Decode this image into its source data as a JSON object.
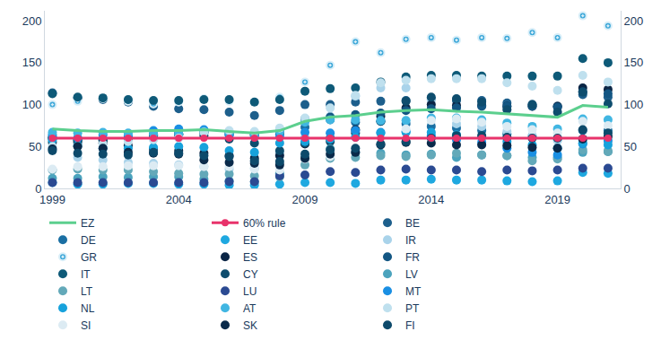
{
  "chart_data": {
    "type": "scatter",
    "x": [
      1999,
      2000,
      2001,
      2002,
      2003,
      2004,
      2005,
      2006,
      2007,
      2008,
      2009,
      2010,
      2011,
      2012,
      2013,
      2014,
      2015,
      2016,
      2017,
      2018,
      2019,
      2020,
      2021
    ],
    "xlim": [
      1998.7,
      2021.5
    ],
    "xticks": [
      1999,
      2004,
      2009,
      2014,
      2019
    ],
    "ylim": [
      0,
      212
    ],
    "yticks": [
      0,
      50,
      100,
      150,
      200
    ],
    "grid": false,
    "legend": "bottom",
    "series": [
      {
        "name": "EZ",
        "type": "line",
        "color": "#5ccf8e",
        "values": [
          71,
          69,
          68,
          68,
          69,
          69,
          70,
          68,
          66,
          69,
          80,
          85,
          87,
          91,
          93,
          94,
          92,
          91,
          89,
          87,
          85,
          99,
          97
        ]
      },
      {
        "name": "60% rule",
        "type": "line",
        "marker": "circle",
        "color": "#e8336b",
        "values": [
          60,
          60,
          60,
          60,
          60,
          60,
          60,
          60,
          60,
          60,
          60,
          60,
          60,
          60,
          60,
          60,
          60,
          60,
          60,
          60,
          60,
          60,
          60
        ]
      },
      {
        "name": "BE",
        "color": "#1d5f8c",
        "values": [
          114,
          108,
          106,
          103,
          98,
          95,
          94,
          91,
          87,
          93,
          100,
          100,
          103,
          104,
          105,
          107,
          105,
          105,
          102,
          100,
          98,
          112,
          109
        ]
      },
      {
        "name": "DE",
        "color": "#1a6fa3",
        "values": [
          61,
          59,
          58,
          60,
          63,
          65,
          67,
          66,
          64,
          65,
          73,
          82,
          79,
          80,
          77,
          74,
          72,
          69,
          65,
          62,
          59,
          69,
          69
        ]
      },
      {
        "name": "EE",
        "color": "#1ea8e0",
        "values": [
          7,
          5,
          5,
          6,
          6,
          5,
          5,
          4,
          4,
          5,
          7,
          7,
          6,
          10,
          10,
          11,
          10,
          10,
          9,
          8,
          9,
          19,
          18
        ]
      },
      {
        "name": "IR",
        "color": "#a9d3ea",
        "values": [
          47,
          37,
          34,
          31,
          30,
          28,
          26,
          23,
          24,
          42,
          61,
          86,
          110,
          120,
          120,
          105,
          77,
          74,
          68,
          63,
          57,
          58,
          56
        ]
      },
      {
        "name": "GR",
        "marker": "circle-dot",
        "color": "#3aa6d8",
        "values": [
          100,
          104,
          107,
          104,
          101,
          103,
          107,
          104,
          103,
          109,
          127,
          147,
          175,
          162,
          178,
          180,
          177,
          180,
          179,
          186,
          180,
          206,
          194
        ]
      },
      {
        "name": "ES",
        "color": "#0b2545",
        "values": [
          60,
          57,
          54,
          51,
          47,
          45,
          42,
          39,
          36,
          39,
          53,
          60,
          70,
          86,
          96,
          100,
          99,
          99,
          98,
          98,
          98,
          120,
          118
        ]
      },
      {
        "name": "FR",
        "color": "#135683",
        "values": [
          60,
          58,
          58,
          60,
          64,
          65,
          67,
          64,
          64,
          68,
          83,
          85,
          88,
          90,
          93,
          95,
          96,
          98,
          98,
          98,
          97,
          115,
          113
        ]
      },
      {
        "name": "IT",
        "color": "#0e5a78",
        "values": [
          113,
          109,
          108,
          106,
          105,
          105,
          106,
          106,
          103,
          106,
          116,
          119,
          120,
          127,
          133,
          135,
          135,
          134,
          134,
          134,
          134,
          155,
          150
        ]
      },
      {
        "name": "CY",
        "color": "#0e4d6e",
        "values": [
          55,
          55,
          57,
          60,
          64,
          64,
          63,
          59,
          54,
          45,
          54,
          56,
          66,
          80,
          104,
          109,
          107,
          103,
          94,
          100,
          91,
          115,
          101
        ]
      },
      {
        "name": "LV",
        "color": "#4ba3bd",
        "values": [
          12,
          12,
          14,
          13,
          14,
          14,
          11,
          9,
          8,
          18,
          36,
          47,
          43,
          42,
          40,
          41,
          37,
          40,
          39,
          37,
          37,
          43,
          44
        ]
      },
      {
        "name": "LT",
        "color": "#63a9b9",
        "values": [
          22,
          23,
          22,
          22,
          20,
          18,
          17,
          17,
          15,
          14,
          28,
          36,
          37,
          39,
          38,
          40,
          42,
          40,
          39,
          33,
          35,
          46,
          44
        ]
      },
      {
        "name": "LU",
        "color": "#2b4a92",
        "values": [
          7,
          7,
          7,
          7,
          7,
          7,
          7,
          8,
          8,
          15,
          16,
          20,
          19,
          22,
          23,
          22,
          22,
          20,
          22,
          21,
          22,
          24,
          24
        ]
      },
      {
        "name": "MT",
        "color": "#1a8fe3",
        "values": [
          64,
          60,
          64,
          63,
          69,
          71,
          70,
          64,
          62,
          62,
          67,
          66,
          69,
          67,
          68,
          63,
          58,
          55,
          48,
          43,
          40,
          53,
          57
        ]
      },
      {
        "name": "NL",
        "color": "#17a2dc",
        "values": [
          58,
          51,
          48,
          48,
          49,
          50,
          49,
          45,
          43,
          54,
          56,
          59,
          61,
          66,
          67,
          67,
          64,
          61,
          56,
          52,
          48,
          54,
          52
        ]
      },
      {
        "name": "AT",
        "color": "#41b6e2",
        "values": [
          67,
          66,
          67,
          66,
          65,
          65,
          68,
          67,
          65,
          68,
          79,
          82,
          82,
          81,
          81,
          84,
          84,
          82,
          78,
          74,
          71,
          83,
          82
        ]
      },
      {
        "name": "PT",
        "color": "#bfe0ee",
        "values": [
          50,
          50,
          53,
          56,
          58,
          60,
          67,
          69,
          68,
          72,
          84,
          96,
          111,
          126,
          129,
          131,
          131,
          131,
          126,
          122,
          117,
          135,
          127
        ]
      },
      {
        "name": "SI",
        "color": "#dcebf3",
        "values": [
          23,
          26,
          26,
          27,
          27,
          27,
          26,
          26,
          23,
          22,
          35,
          38,
          47,
          54,
          71,
          81,
          83,
          79,
          74,
          70,
          66,
          80,
          75
        ]
      },
      {
        "name": "SK",
        "color": "#0a2a4a",
        "values": [
          47,
          50,
          48,
          43,
          42,
          41,
          34,
          31,
          30,
          28,
          36,
          41,
          43,
          52,
          55,
          54,
          52,
          52,
          51,
          49,
          48,
          59,
          62
        ]
      },
      {
        "name": "FI",
        "color": "#0d4a6b",
        "values": [
          45,
          42,
          41,
          40,
          43,
          42,
          39,
          38,
          33,
          32,
          41,
          46,
          48,
          53,
          56,
          60,
          63,
          63,
          61,
          60,
          60,
          70,
          66
        ]
      }
    ]
  }
}
